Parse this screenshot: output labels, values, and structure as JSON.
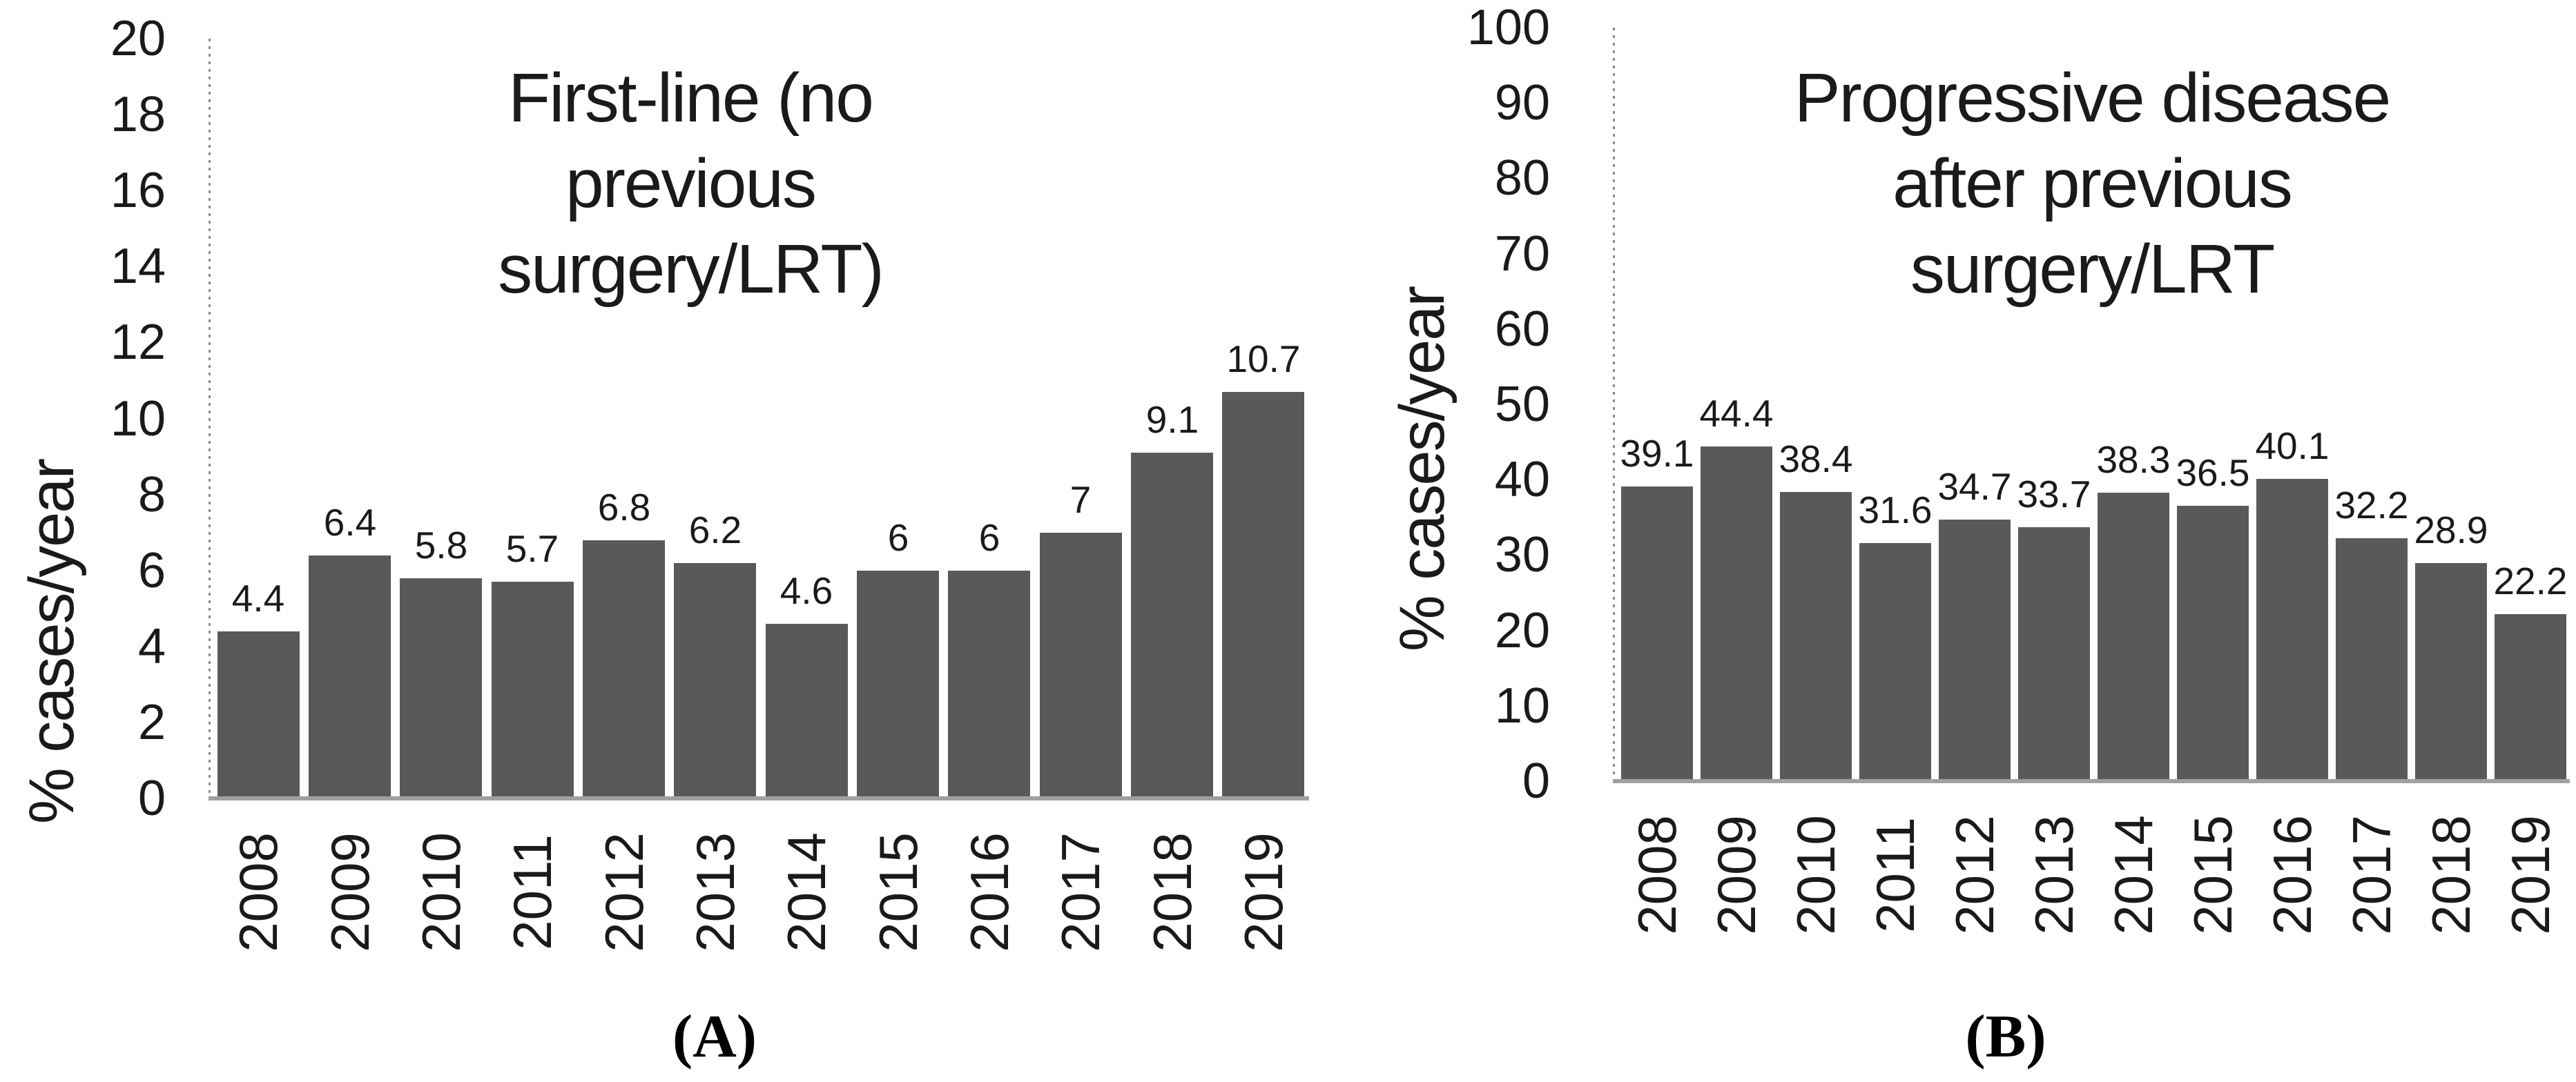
{
  "figure": {
    "panels": [
      {
        "letter": "(A)",
        "ylabel": "% cases/year",
        "title_lines": [
          "First-line (no",
          "previous",
          "surgery/LRT)"
        ]
      },
      {
        "letter": "(B)",
        "ylabel": "% cases/year",
        "title_lines": [
          "Progressive disease",
          "after previous",
          "surgery/LRT"
        ]
      }
    ]
  },
  "chart_data": [
    {
      "type": "bar",
      "title": "First-line (no previous surgery/LRT)",
      "categories": [
        "2008",
        "2009",
        "2010",
        "2011",
        "2012",
        "2013",
        "2014",
        "2015",
        "2016",
        "2017",
        "2018",
        "2019"
      ],
      "values": [
        4.4,
        6.4,
        5.8,
        5.7,
        6.8,
        6.2,
        4.6,
        6,
        6,
        7,
        9.1,
        10.7
      ],
      "xlabel": "",
      "ylabel": "% cases/year",
      "ylim": [
        0,
        20
      ],
      "ytick_step": 2,
      "bar_color": "#595959",
      "grid": false,
      "legend": null,
      "data_labels": true
    },
    {
      "type": "bar",
      "title": "Progressive disease after previous surgery/LRT",
      "categories": [
        "2008",
        "2009",
        "2010",
        "2011",
        "2012",
        "2013",
        "2014",
        "2015",
        "2016",
        "2017",
        "2018",
        "2019"
      ],
      "values": [
        39.1,
        44.4,
        38.4,
        31.6,
        34.7,
        33.7,
        38.3,
        36.5,
        40.1,
        32.2,
        28.9,
        22.2
      ],
      "xlabel": "",
      "ylabel": "% cases/year",
      "ylim": [
        0,
        100
      ],
      "ytick_step": 10,
      "bar_color": "#595959",
      "grid": false,
      "legend": null,
      "data_labels": true
    }
  ]
}
